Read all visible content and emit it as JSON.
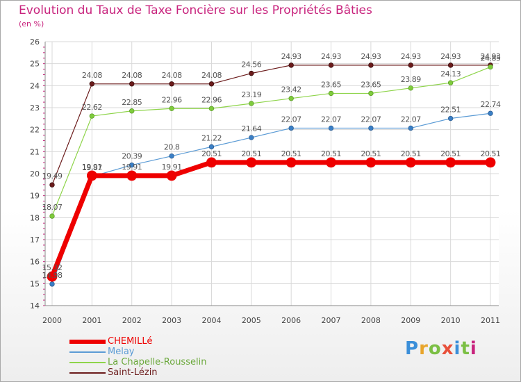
{
  "title": "Evolution du Taux de Taxe Foncière sur les Propriétés Bâties",
  "subtitle": "(en %)",
  "brand": {
    "text": "Proxiti",
    "colors": [
      "#3b8fd9",
      "#e8a52b",
      "#7bbf44",
      "#e8503a",
      "#3b8fd9",
      "#7bbf44",
      "#c8237d"
    ]
  },
  "chart_data": {
    "type": "line",
    "x": [
      "2000",
      "2001",
      "2002",
      "2003",
      "2004",
      "2005",
      "2006",
      "2007",
      "2008",
      "2009",
      "2010",
      "2011"
    ],
    "ylim": [
      14,
      26
    ],
    "yticks": [
      "14",
      "15",
      "16",
      "17",
      "18",
      "19",
      "20",
      "21",
      "22",
      "23",
      "24",
      "25",
      "26"
    ],
    "grid": true,
    "legend_position": "bottom-left",
    "series": [
      {
        "name": "CHEMILLé",
        "color": "#ee0000",
        "values": [
          15.32,
          19.91,
          19.91,
          19.91,
          20.51,
          20.51,
          20.51,
          20.51,
          20.51,
          20.51,
          20.51,
          20.51
        ],
        "labels": [
          "15.32",
          "19.91",
          "19.91",
          "19.91",
          "20.51",
          "20.51",
          "20.51",
          "20.51",
          "20.51",
          "20.51",
          "20.51",
          "20.51"
        ]
      },
      {
        "name": "Melay",
        "color": "#5b9bd5",
        "values": [
          14.98,
          19.87,
          20.39,
          20.8,
          21.22,
          21.64,
          22.07,
          22.07,
          22.07,
          22.07,
          22.51,
          22.74
        ],
        "labels": [
          "14.98",
          "19.87",
          "20.39",
          "20.8",
          "21.22",
          "21.64",
          "22.07",
          "22.07",
          "22.07",
          "22.07",
          "22.51",
          "22.74"
        ]
      },
      {
        "name": "La Chapelle-Rousselin",
        "color": "#8ed44a",
        "values": [
          18.07,
          22.62,
          22.85,
          22.96,
          22.96,
          23.19,
          23.42,
          23.65,
          23.65,
          23.89,
          24.13,
          24.85
        ],
        "labels": [
          "18.07",
          "22.62",
          "22.85",
          "22.96",
          "22.96",
          "23.19",
          "23.42",
          "23.65",
          "23.65",
          "23.89",
          "24.13",
          "24.85"
        ]
      },
      {
        "name": "Saint-Lézin",
        "color": "#6b1b1b",
        "values": [
          19.49,
          24.08,
          24.08,
          24.08,
          24.08,
          24.56,
          24.93,
          24.93,
          24.93,
          24.93,
          24.93,
          24.93
        ],
        "labels": [
          "19.49",
          "24.08",
          "24.08",
          "24.08",
          "24.08",
          "24.56",
          "24.93",
          "24.93",
          "24.93",
          "24.93",
          "24.93",
          "24.93"
        ]
      }
    ]
  }
}
